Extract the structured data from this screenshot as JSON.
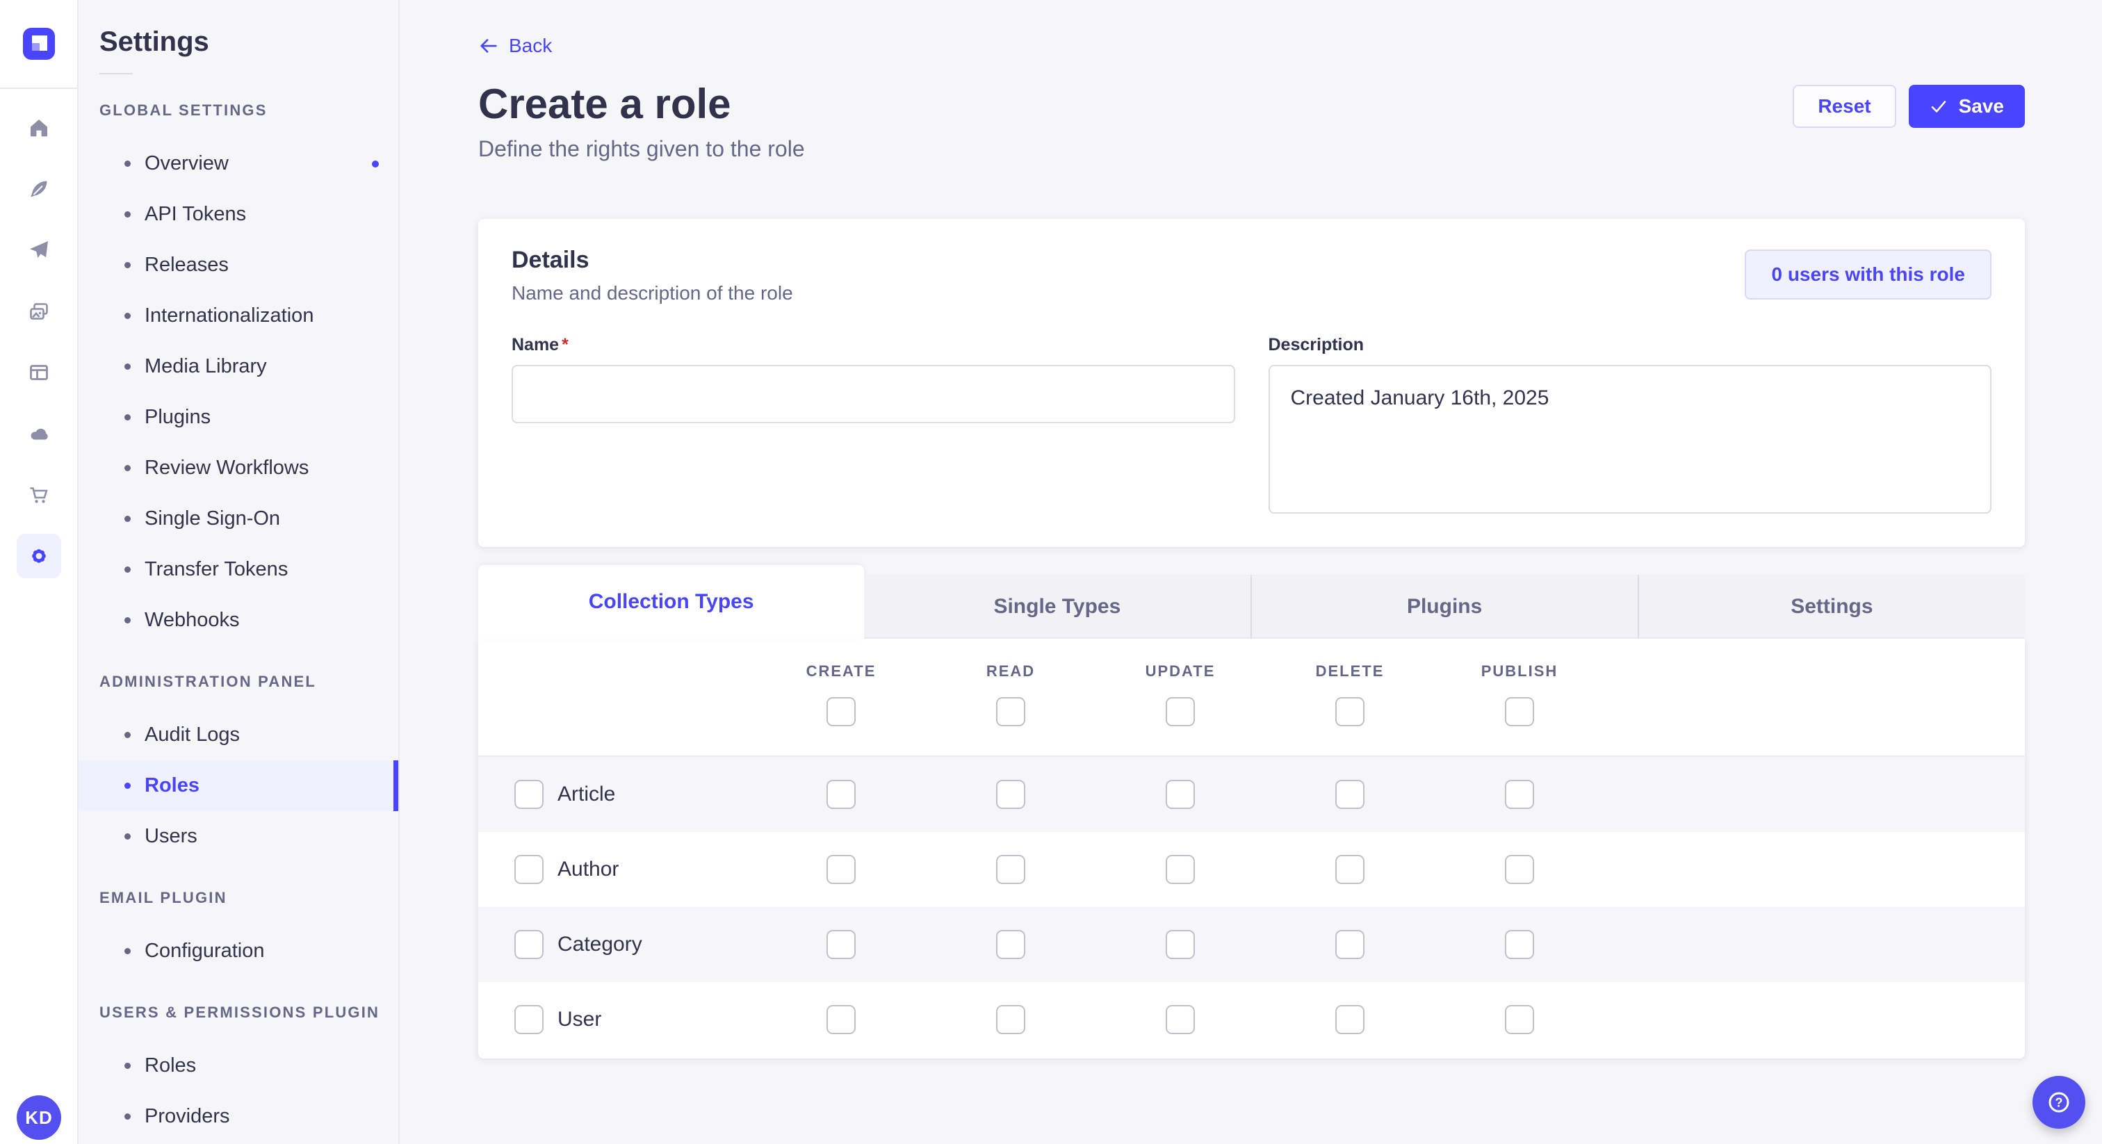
{
  "colors": {
    "primary": "#4945ff",
    "primary_light": "#f0f0ff",
    "primary_border": "#d9d8ff",
    "background": "#f6f6f9",
    "card": "#ffffff",
    "border": "#eaeaef",
    "input_border": "#dcdce4",
    "checkbox_border": "#c0c0cf",
    "text": "#32324d",
    "text_muted": "#666687",
    "danger": "#d02b20",
    "icon": "#8e8ea9"
  },
  "rail": {
    "logo": "strapi-logo",
    "icons": [
      "home",
      "feather",
      "send",
      "media",
      "layout",
      "cloud",
      "cart",
      "gear"
    ],
    "active_icon": "gear",
    "avatar_initials": "KD"
  },
  "sidebar": {
    "title": "Settings",
    "sections": [
      {
        "label": "GLOBAL SETTINGS",
        "items": [
          {
            "label": "Overview",
            "notification": true
          },
          {
            "label": "API Tokens"
          },
          {
            "label": "Releases"
          },
          {
            "label": "Internationalization"
          },
          {
            "label": "Media Library"
          },
          {
            "label": "Plugins"
          },
          {
            "label": "Review Workflows"
          },
          {
            "label": "Single Sign-On"
          },
          {
            "label": "Transfer Tokens"
          },
          {
            "label": "Webhooks"
          }
        ]
      },
      {
        "label": "ADMINISTRATION PANEL",
        "items": [
          {
            "label": "Audit Logs"
          },
          {
            "label": "Roles",
            "active": true
          },
          {
            "label": "Users"
          }
        ]
      },
      {
        "label": "EMAIL PLUGIN",
        "items": [
          {
            "label": "Configuration"
          }
        ]
      },
      {
        "label": "USERS & PERMISSIONS PLUGIN",
        "items": [
          {
            "label": "Roles"
          },
          {
            "label": "Providers"
          }
        ]
      }
    ]
  },
  "header": {
    "back_label": "Back",
    "title": "Create a role",
    "subtitle": "Define the rights given to the role",
    "reset_label": "Reset",
    "save_label": "Save"
  },
  "details": {
    "title": "Details",
    "subtitle": "Name and description of the role",
    "users_button_label": "0 users with this role",
    "name_label": "Name",
    "required_mark": "*",
    "name_value": "",
    "description_label": "Description",
    "description_value": "Created January 16th, 2025"
  },
  "tabs": [
    {
      "label": "Collection Types",
      "active": true
    },
    {
      "label": "Single Types"
    },
    {
      "label": "Plugins"
    },
    {
      "label": "Settings"
    }
  ],
  "permissions": {
    "columns": [
      "CREATE",
      "READ",
      "UPDATE",
      "DELETE",
      "PUBLISH"
    ],
    "rows": [
      "Article",
      "Author",
      "Category",
      "User"
    ],
    "all_checkboxes_state": "unchecked"
  }
}
